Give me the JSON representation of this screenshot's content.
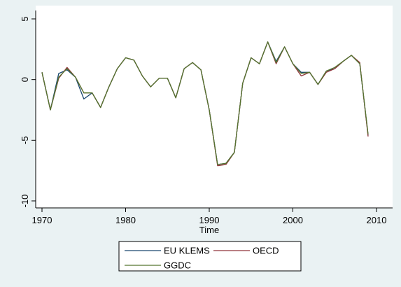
{
  "chart_data": {
    "type": "line",
    "xlabel": "Time",
    "ylabel": "",
    "xlim": [
      1970,
      2010
    ],
    "ylim": [
      -10,
      5
    ],
    "xticks": [
      "1970",
      "1980",
      "1990",
      "2000",
      "2010"
    ],
    "yticks": [
      "5",
      "0",
      "-5",
      "-10"
    ],
    "legend_position": "bottom",
    "colors": {
      "background": "#eaf2f3",
      "plot": "#ffffff"
    },
    "x": [
      1970,
      1971,
      1972,
      1973,
      1974,
      1975,
      1976,
      1977,
      1978,
      1979,
      1980,
      1981,
      1982,
      1983,
      1984,
      1985,
      1986,
      1987,
      1988,
      1989,
      1990,
      1991,
      1992,
      1993,
      1994,
      1995,
      1996,
      1997,
      1998,
      1999,
      2000,
      2001,
      2002,
      2003,
      2004,
      2005,
      2006,
      2007,
      2008,
      2009
    ],
    "series": [
      {
        "name": "EU KLEMS",
        "color": "#1a476f",
        "values": [
          0.6,
          -2.5,
          0.5,
          0.8,
          0.2,
          -1.6,
          -1.1,
          -2.3,
          -0.6,
          0.9,
          1.8,
          1.6,
          0.3,
          -0.6,
          0.1,
          0.1,
          -1.5,
          0.9,
          1.4,
          0.8,
          -2.5,
          -7.0,
          -6.9,
          -6.0,
          -0.3,
          1.8,
          1.3,
          3.1,
          1.5,
          2.7,
          1.3,
          0.6,
          0.6,
          -0.4,
          0.7,
          0.9,
          1.5,
          2.0,
          1.3,
          -4.6
        ]
      },
      {
        "name": "OECD",
        "color": "#90353b",
        "values": [
          0.6,
          -2.5,
          0.1,
          1.0,
          0.2,
          -1.1,
          -1.1,
          -2.3,
          -0.6,
          0.9,
          1.8,
          1.6,
          0.3,
          -0.6,
          0.1,
          0.1,
          -1.5,
          0.9,
          1.4,
          0.8,
          -2.5,
          -7.1,
          -7.0,
          -6.0,
          -0.3,
          1.8,
          1.3,
          3.1,
          1.3,
          2.7,
          1.3,
          0.3,
          0.6,
          -0.4,
          0.6,
          0.9,
          1.5,
          2.0,
          1.4,
          -4.7
        ]
      },
      {
        "name": "GGDC",
        "color": "#55752f",
        "values": [
          0.6,
          -2.5,
          0.2,
          0.9,
          0.2,
          -1.1,
          -1.1,
          -2.3,
          -0.6,
          0.9,
          1.8,
          1.6,
          0.3,
          -0.6,
          0.1,
          0.1,
          -1.5,
          0.9,
          1.4,
          0.8,
          -2.5,
          -7.0,
          -6.9,
          -6.0,
          -0.3,
          1.8,
          1.3,
          3.1,
          1.4,
          2.7,
          1.3,
          0.5,
          0.6,
          -0.4,
          0.7,
          1.0,
          1.5,
          2.0,
          1.3,
          -4.5
        ]
      }
    ]
  }
}
